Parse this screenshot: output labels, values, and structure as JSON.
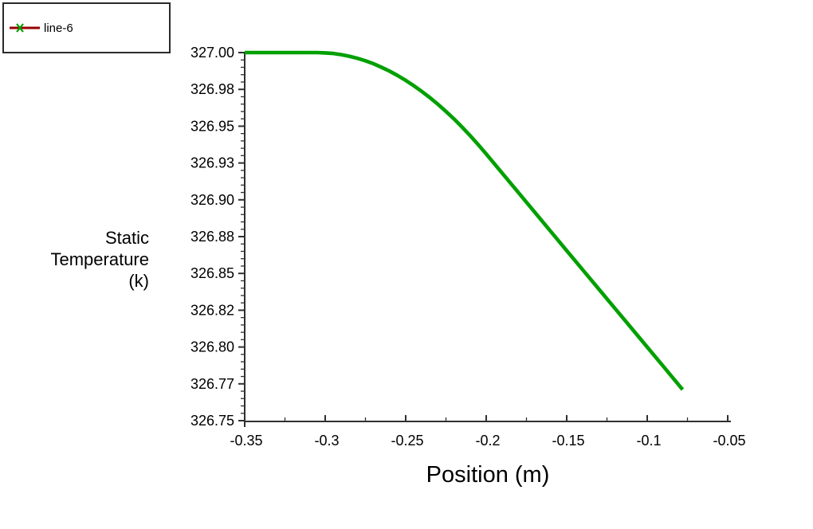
{
  "legend": {
    "label": "line-6",
    "line_color": "#990000",
    "marker_color": "#00a000",
    "marker": "x"
  },
  "axes": {
    "y_title_lines": [
      "Static",
      "Temperature",
      "(k)"
    ],
    "x_title": "Position (m)"
  },
  "chart_data": {
    "type": "line",
    "title": "",
    "xlabel": "Position (m)",
    "ylabel": "Static Temperature (k)",
    "xlim": [
      -0.35,
      -0.05
    ],
    "ylim": [
      326.75,
      327.0
    ],
    "grid": false,
    "legend_position": "top-left-outside",
    "x_ticks": [
      {
        "value": -0.35,
        "label": "-0.35"
      },
      {
        "value": -0.3,
        "label": "-0.3"
      },
      {
        "value": -0.25,
        "label": "-0.25"
      },
      {
        "value": -0.2,
        "label": "-0.2"
      },
      {
        "value": -0.15,
        "label": "-0.15"
      },
      {
        "value": -0.1,
        "label": "-0.1"
      },
      {
        "value": -0.05,
        "label": "-0.05"
      }
    ],
    "y_ticks": [
      {
        "value": 327.0,
        "label": "327.00"
      },
      {
        "value": 326.975,
        "label": "326.98"
      },
      {
        "value": 326.95,
        "label": "326.95"
      },
      {
        "value": 326.925,
        "label": "326.93"
      },
      {
        "value": 326.9,
        "label": "326.90"
      },
      {
        "value": 326.875,
        "label": "326.88"
      },
      {
        "value": 326.85,
        "label": "326.85"
      },
      {
        "value": 326.825,
        "label": "326.82"
      },
      {
        "value": 326.8,
        "label": "326.80"
      },
      {
        "value": 326.775,
        "label": "326.77"
      },
      {
        "value": 326.75,
        "label": "326.75"
      }
    ],
    "x_minor_divisions": 2,
    "y_minor_divisions": 5,
    "series": [
      {
        "name": "line-6",
        "color": "#00a000",
        "legend_line_color": "#990000",
        "marker": "x",
        "points": [
          [
            -0.35,
            327.0
          ],
          [
            -0.34,
            327.0
          ],
          [
            -0.33,
            327.0
          ],
          [
            -0.32,
            327.0
          ],
          [
            -0.31,
            327.0
          ],
          [
            -0.305,
            327.0
          ],
          [
            -0.3,
            326.9998
          ],
          [
            -0.295,
            326.9994
          ],
          [
            -0.29,
            326.9986
          ],
          [
            -0.285,
            326.9975
          ],
          [
            -0.28,
            326.9961
          ],
          [
            -0.275,
            326.9944
          ],
          [
            -0.27,
            326.9924
          ],
          [
            -0.265,
            326.99
          ],
          [
            -0.26,
            326.9874
          ],
          [
            -0.255,
            326.9844
          ],
          [
            -0.25,
            326.9811
          ],
          [
            -0.245,
            326.9775
          ],
          [
            -0.24,
            326.9736
          ],
          [
            -0.235,
            326.9694
          ],
          [
            -0.23,
            326.9649
          ],
          [
            -0.225,
            326.96
          ],
          [
            -0.22,
            326.9549
          ],
          [
            -0.215,
            326.9494
          ],
          [
            -0.21,
            326.9436
          ],
          [
            -0.205,
            326.9375
          ],
          [
            -0.2,
            326.9311
          ],
          [
            -0.19,
            326.918
          ],
          [
            -0.18,
            326.9049
          ],
          [
            -0.17,
            326.8918
          ],
          [
            -0.16,
            326.8786
          ],
          [
            -0.15,
            326.8655
          ],
          [
            -0.14,
            326.8524
          ],
          [
            -0.13,
            326.8393
          ],
          [
            -0.12,
            326.8262
          ],
          [
            -0.11,
            326.8131
          ],
          [
            -0.1,
            326.8
          ],
          [
            -0.09,
            326.7869
          ],
          [
            -0.08,
            326.7737
          ],
          [
            -0.078,
            326.7711
          ]
        ]
      }
    ]
  }
}
